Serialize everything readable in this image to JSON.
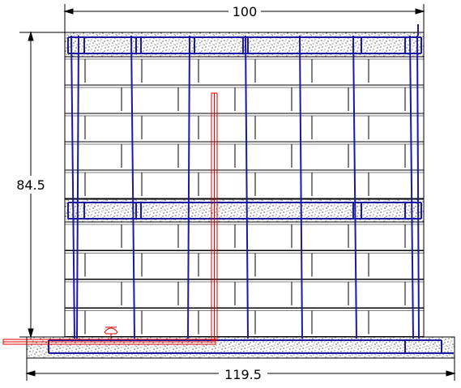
{
  "dimensions": {
    "top_width": "100",
    "left_height": "84.5",
    "bottom_width": "119.5"
  },
  "colors": {
    "line": "#000000",
    "rebar": "#1a1aa6",
    "pipe": "#e00000",
    "concrete_fill": "#ffffff"
  }
}
